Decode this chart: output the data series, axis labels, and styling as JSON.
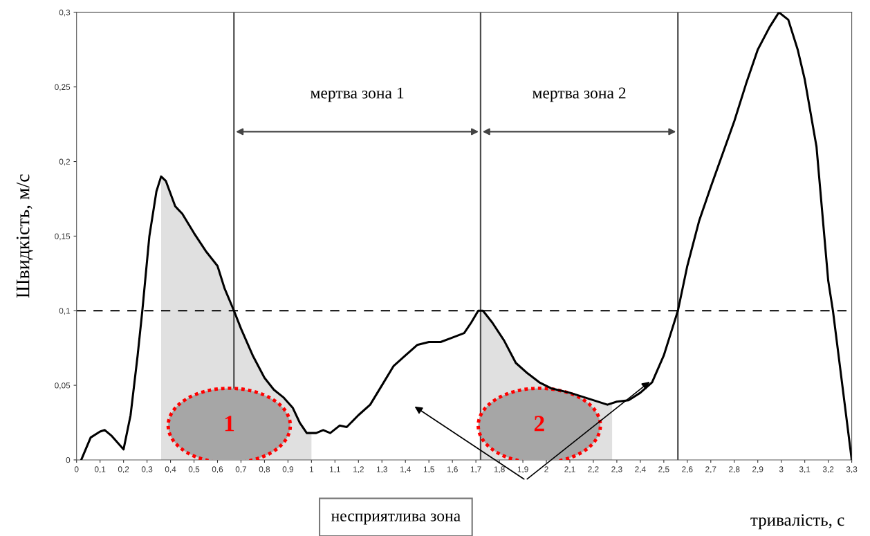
{
  "chart_data": {
    "type": "line",
    "xlabel": "тривалість, с",
    "ylabel": "Швидкість, м/с",
    "x": [
      0.02,
      0.06,
      0.1,
      0.12,
      0.15,
      0.2,
      0.23,
      0.26,
      0.28,
      0.31,
      0.34,
      0.36,
      0.38,
      0.42,
      0.45,
      0.5,
      0.55,
      0.6,
      0.63,
      0.67,
      0.7,
      0.75,
      0.8,
      0.84,
      0.88,
      0.92,
      0.95,
      0.98,
      1.02,
      1.05,
      1.08,
      1.12,
      1.15,
      1.2,
      1.25,
      1.3,
      1.35,
      1.4,
      1.45,
      1.5,
      1.55,
      1.6,
      1.65,
      1.68,
      1.71,
      1.73,
      1.77,
      1.82,
      1.87,
      1.92,
      1.97,
      2.02,
      2.1,
      2.2,
      2.26,
      2.3,
      2.35,
      2.4,
      2.45,
      2.5,
      2.53,
      2.56,
      2.6,
      2.65,
      2.7,
      2.75,
      2.8,
      2.85,
      2.9,
      2.95,
      2.99,
      3.03,
      3.07,
      3.1,
      3.15,
      3.2,
      3.22,
      3.3
    ],
    "series": [
      {
        "color": "#000000",
        "values": [
          0,
          0.015,
          0.019,
          0.02,
          0.016,
          0.007,
          0.03,
          0.07,
          0.1,
          0.15,
          0.18,
          0.19,
          0.187,
          0.17,
          0.165,
          0.152,
          0.14,
          0.13,
          0.115,
          0.1,
          0.088,
          0.07,
          0.055,
          0.047,
          0.042,
          0.035,
          0.025,
          0.018,
          0.018,
          0.02,
          0.018,
          0.023,
          0.022,
          0.03,
          0.037,
          0.05,
          0.063,
          0.07,
          0.077,
          0.079,
          0.079,
          0.082,
          0.085,
          0.092,
          0.1,
          0.1,
          0.092,
          0.08,
          0.065,
          0.058,
          0.052,
          0.048,
          0.045,
          0.04,
          0.037,
          0.039,
          0.04,
          0.045,
          0.052,
          0.07,
          0.085,
          0.1,
          0.13,
          0.16,
          0.183,
          0.205,
          0.227,
          0.252,
          0.275,
          0.29,
          0.3,
          0.295,
          0.275,
          0.255,
          0.21,
          0.12,
          0.1,
          0
        ]
      },
      {
        "type": "area",
        "color": "#e0e0e0",
        "x": [
          0.36,
          0.38,
          0.42,
          0.45,
          0.5,
          0.55,
          0.6,
          0.63,
          0.67,
          0.7,
          0.75,
          0.8,
          0.84,
          0.88,
          0.92,
          0.95,
          0.98,
          1.0
        ],
        "values": [
          0.19,
          0.187,
          0.17,
          0.165,
          0.152,
          0.14,
          0.13,
          0.115,
          0.1,
          0.088,
          0.07,
          0.055,
          0.047,
          0.042,
          0.035,
          0.025,
          0.018,
          0.018
        ]
      },
      {
        "type": "area",
        "color": "#e0e0e0",
        "x": [
          1.72,
          1.73,
          1.77,
          1.82,
          1.87,
          1.92,
          1.97,
          2.02,
          2.1,
          2.2,
          2.26,
          2.28
        ],
        "values": [
          0.1,
          0.1,
          0.092,
          0.08,
          0.065,
          0.058,
          0.052,
          0.048,
          0.045,
          0.04,
          0.037,
          0.038
        ]
      }
    ],
    "xlim": [
      0,
      3.3
    ],
    "xticks": [
      0,
      {
        "value": 0.1,
        "label": "0,1"
      },
      {
        "value": 0.2,
        "label": "0,2"
      },
      {
        "value": 0.3,
        "label": "0,3"
      },
      {
        "value": 0.4,
        "label": "0,4"
      },
      {
        "value": 0.5,
        "label": "0,5"
      },
      {
        "value": 0.6,
        "label": "0,6"
      },
      {
        "value": 0.7,
        "label": "0,7"
      },
      {
        "value": 0.8,
        "label": "0,8"
      },
      {
        "value": 0.9,
        "label": "0,9"
      },
      1,
      {
        "value": 1.1,
        "label": "1,1"
      },
      {
        "value": 1.2,
        "label": "1,2"
      },
      {
        "value": 1.3,
        "label": "1,3"
      },
      {
        "value": 1.4,
        "label": "1,4"
      },
      {
        "value": 1.5,
        "label": "1,5"
      },
      {
        "value": 1.6,
        "label": "1,6"
      },
      {
        "value": 1.7,
        "label": "1,7"
      },
      {
        "value": 1.8,
        "label": "1,8"
      },
      {
        "value": 1.9,
        "label": "1,9"
      },
      2,
      {
        "value": 2.1,
        "label": "2,1"
      },
      {
        "value": 2.2,
        "label": "2,2"
      },
      {
        "value": 2.3,
        "label": "2,3"
      },
      {
        "value": 2.4,
        "label": "2,4"
      },
      {
        "value": 2.5,
        "label": "2,5"
      },
      {
        "value": 2.6,
        "label": "2,6"
      },
      {
        "value": 2.7,
        "label": "2,7"
      },
      {
        "value": 2.8,
        "label": "2,8"
      },
      {
        "value": 2.9,
        "label": "2,9"
      },
      3,
      {
        "value": 3.1,
        "label": "3,1"
      },
      {
        "value": 3.2,
        "label": "3,2"
      },
      {
        "value": 3.3,
        "label": "3,3"
      }
    ],
    "ylim": [
      0,
      0.3
    ],
    "yticks": [
      0,
      {
        "value": 0.05,
        "label": "0,05"
      },
      {
        "value": 0.1,
        "label": "0,1"
      },
      {
        "value": 0.15,
        "label": "0,15"
      },
      {
        "value": 0.2,
        "label": "0,2"
      },
      {
        "value": 0.25,
        "label": "0,25"
      },
      {
        "value": 0.3,
        "label": "0,3"
      }
    ],
    "grid": false,
    "legend": false,
    "marker": "none",
    "line_style": "solid",
    "ref_lines": [
      {
        "axis": "y",
        "value": 0.1,
        "line_style": "dashed",
        "color": "#000000"
      },
      {
        "axis": "x",
        "value": 0.67,
        "color": "#4d4d4d"
      },
      {
        "axis": "x",
        "value": 1.72,
        "color": "#4d4d4d"
      },
      {
        "axis": "x",
        "value": 2.56,
        "color": "#4d4d4d"
      }
    ],
    "annotations": [
      "мертва зона 1",
      "мертва зона 2",
      "несприятлива зона",
      "1",
      "2"
    ]
  }
}
